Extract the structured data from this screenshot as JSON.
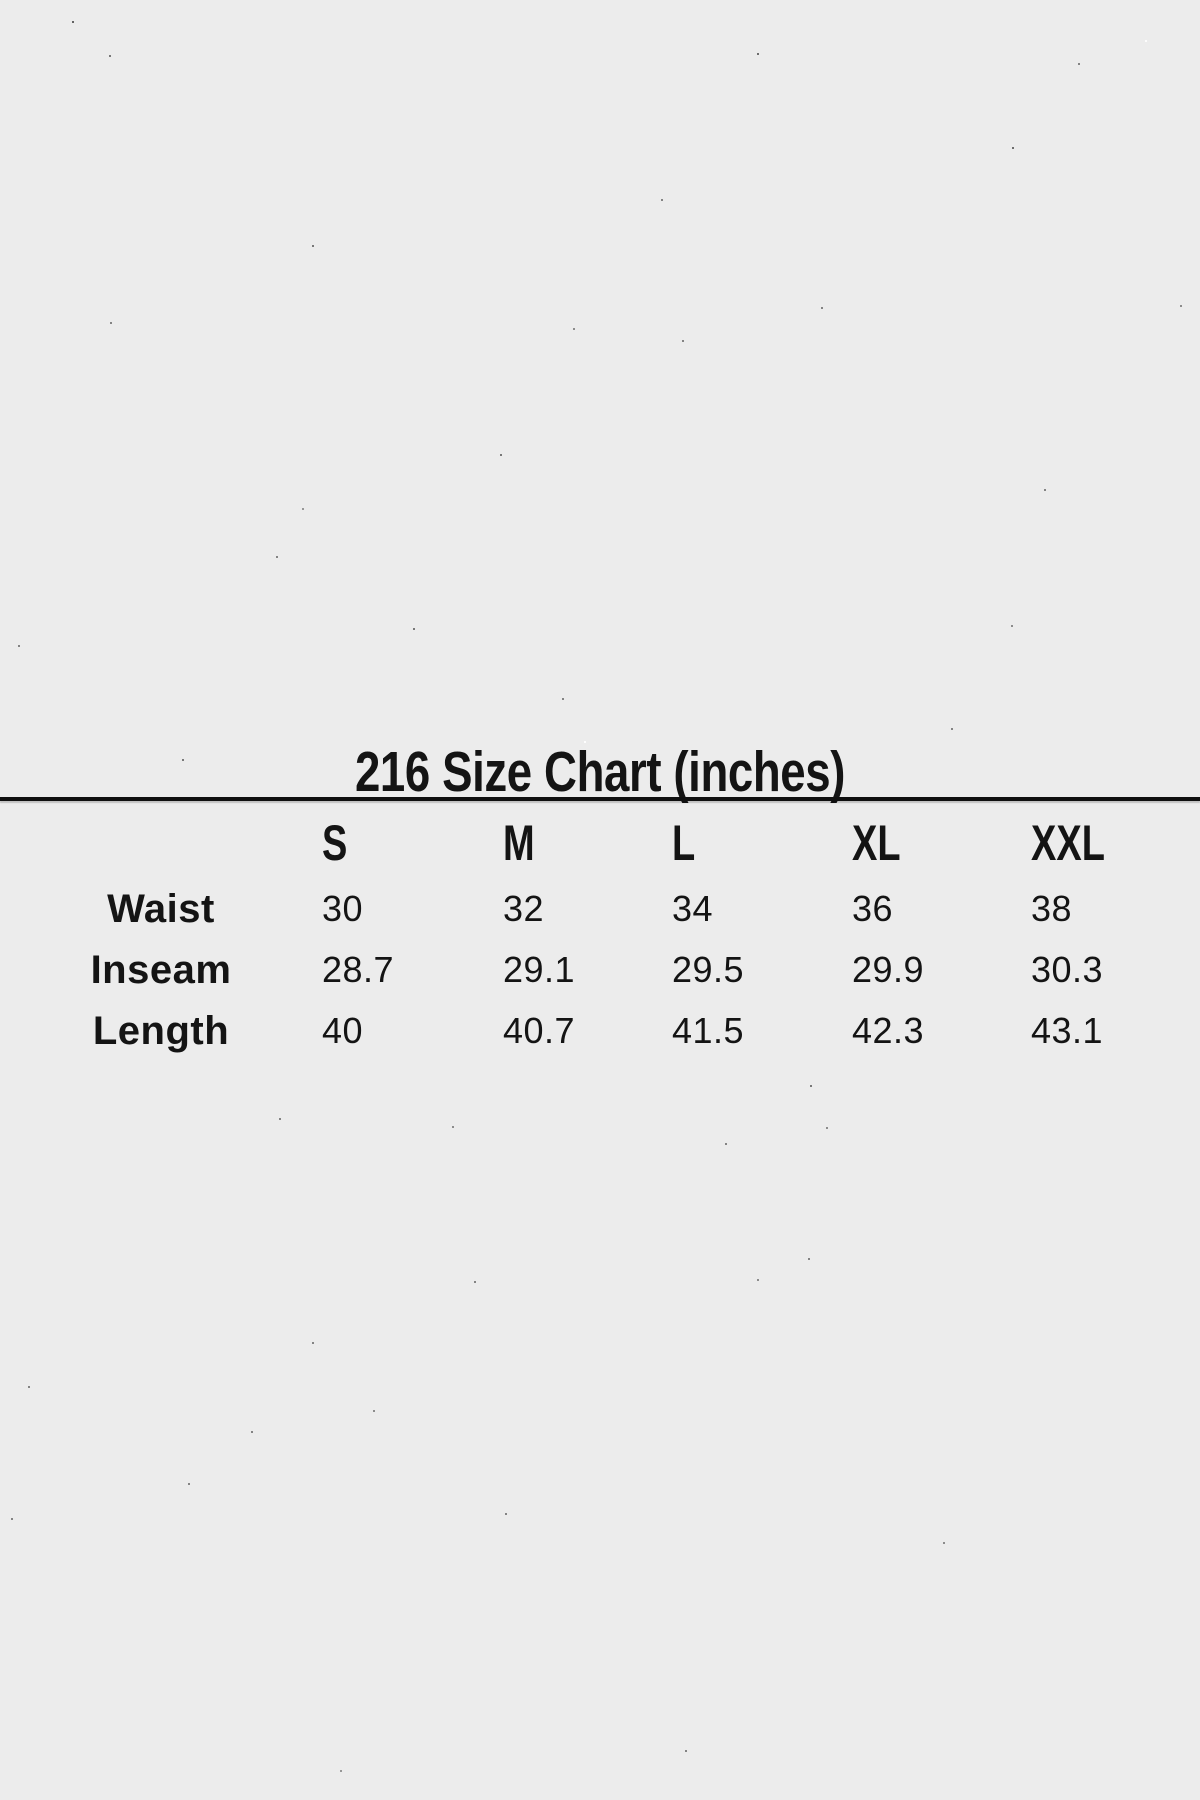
{
  "theme": {
    "background": "#ececec",
    "text": "#141414",
    "divider": "#101010"
  },
  "chart_data": {
    "type": "table",
    "title": "216 Size Chart (inches)",
    "units": "inches",
    "columns": [
      "S",
      "M",
      "L",
      "XL",
      "XXL"
    ],
    "rows": [
      {
        "label": "Waist",
        "values": [
          30,
          32,
          34,
          36,
          38
        ]
      },
      {
        "label": "Inseam",
        "values": [
          28.7,
          29.1,
          29.5,
          29.9,
          30.3
        ]
      },
      {
        "label": "Length",
        "values": [
          40,
          40.7,
          41.5,
          42.3,
          43.1
        ]
      }
    ]
  }
}
